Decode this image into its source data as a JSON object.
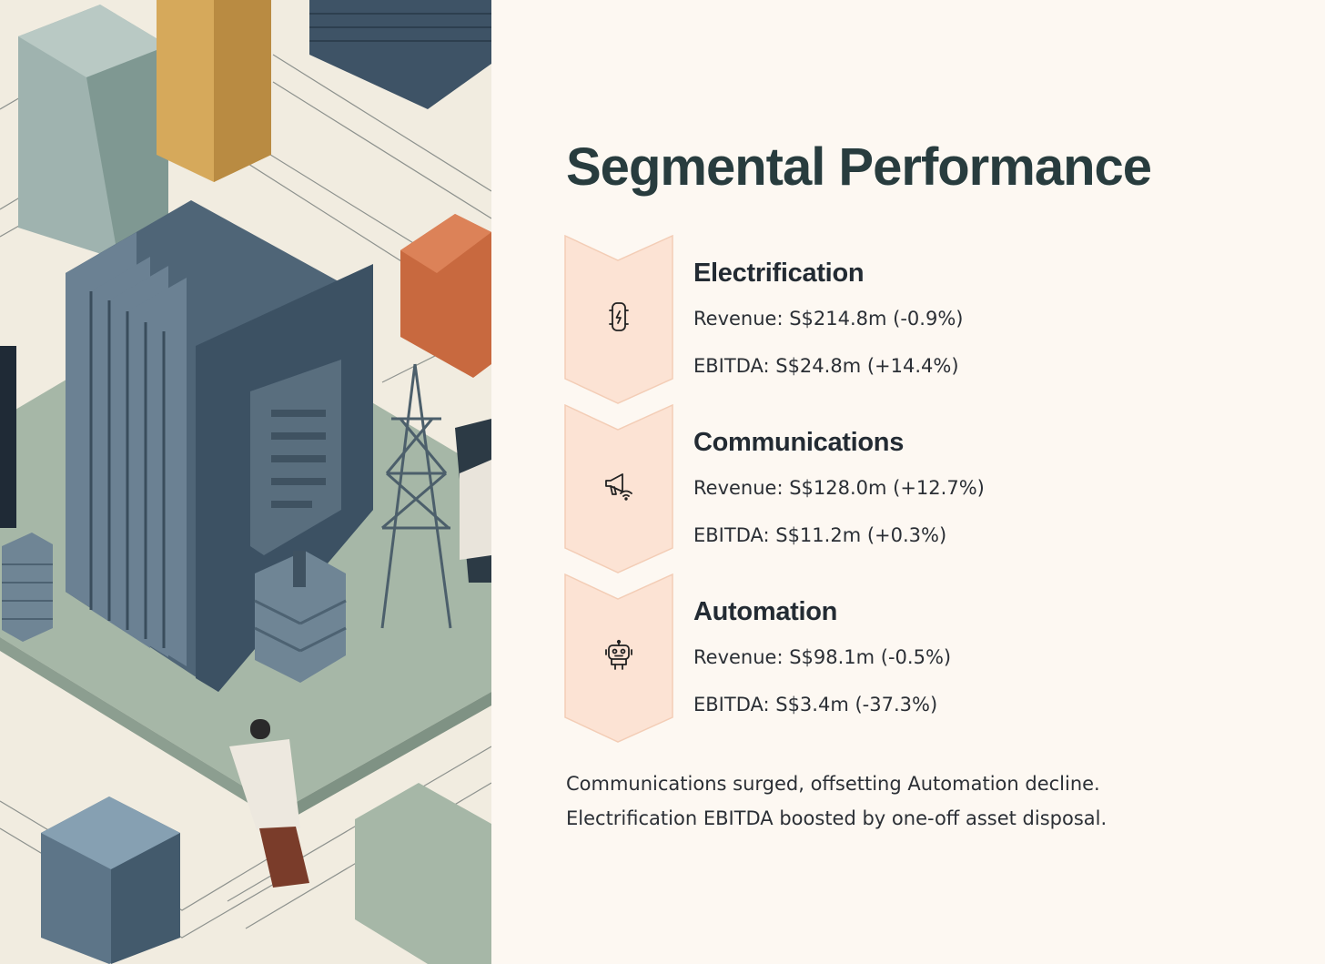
{
  "slide": {
    "title": "Segmental Performance",
    "segments": [
      {
        "name": "Electrification",
        "icon": "electric-car-icon",
        "revenue": "Revenue: S$214.8m (-0.9%)",
        "ebitda": "EBITDA: S$24.8m (+14.4%)"
      },
      {
        "name": "Communications",
        "icon": "megaphone-wifi-icon",
        "revenue": "Revenue: S$128.0m (+12.7%)",
        "ebitda": "EBITDA: S$11.2m (+0.3%)"
      },
      {
        "name": "Automation",
        "icon": "robot-icon",
        "revenue": "Revenue: S$98.1m (-0.5%)",
        "ebitda": "EBITDA: S$3.4m (-37.3%)"
      }
    ],
    "summary": [
      "Communications surged, offsetting Automation decline.",
      "Electrification EBITDA boosted by one-off asset disposal."
    ]
  },
  "colors": {
    "background": "#fdf8f2",
    "title": "#283c3e",
    "chevron_fill": "#fce3d4",
    "chevron_stroke": "#f3cdb6",
    "text": "#2b2f35"
  }
}
